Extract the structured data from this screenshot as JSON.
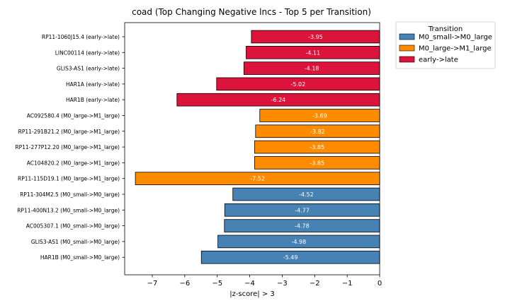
{
  "chart_data": {
    "type": "bar",
    "orientation": "horizontal",
    "title": "coad (Top Changing Negative lncs - Top 5 per Transition)",
    "xlabel": "|z-score| > 3",
    "ylabel": "",
    "xlim": [
      -7.85,
      0
    ],
    "x_ticks": [
      -7,
      -6,
      -5,
      -4,
      -3,
      -2,
      -1,
      0
    ],
    "x_tick_labels": [
      "−7",
      "−6",
      "−5",
      "−4",
      "−3",
      "−2",
      "−1",
      "0"
    ],
    "legend": {
      "title": "Transition",
      "placement": "outside-top-right",
      "entries": [
        {
          "label": "M0_small->M0_large",
          "color": "#4682b4"
        },
        {
          "label": "M0_large->M1_large",
          "color": "#ff8c00"
        },
        {
          "label": "early->late",
          "color": "#dc143c"
        }
      ]
    },
    "categories": [
      "RP11-1060J15.4 (early->late)",
      "LINC00114 (early->late)",
      "GLIS3-AS1 (early->late)",
      "HAR1A (early->late)",
      "HAR1B (early->late)",
      "AC092580.4 (M0_large->M1_large)",
      "RP11-291B21.2 (M0_large->M1_large)",
      "RP11-277P12.20 (M0_large->M1_large)",
      "AC104820.2 (M0_large->M1_large)",
      "RP11-115D19.1 (M0_large->M1_large)",
      "RP11-304M2.5 (M0_small->M0_large)",
      "RP11-400N13.2 (M0_small->M0_large)",
      "AC005307.1 (M0_small->M0_large)",
      "GLIS3-AS1 (M0_small->M0_large)",
      "HAR1B (M0_small->M0_large)"
    ],
    "values": [
      -3.95,
      -4.11,
      -4.18,
      -5.02,
      -6.24,
      -3.69,
      -3.82,
      -3.85,
      -3.85,
      -7.52,
      -4.52,
      -4.77,
      -4.78,
      -4.98,
      -5.49
    ],
    "value_labels": [
      "-3.95",
      "-4.11",
      "-4.18",
      "-5.02",
      "-6.24",
      "-3.69",
      "-3.82",
      "-3.85",
      "-3.85",
      "-7.52",
      "-4.52",
      "-4.77",
      "-4.78",
      "-4.98",
      "-5.49"
    ],
    "bar_colors": [
      "#dc143c",
      "#dc143c",
      "#dc143c",
      "#dc143c",
      "#dc143c",
      "#ff8c00",
      "#ff8c00",
      "#ff8c00",
      "#ff8c00",
      "#ff8c00",
      "#4682b4",
      "#4682b4",
      "#4682b4",
      "#4682b4",
      "#4682b4"
    ],
    "grid": false
  }
}
